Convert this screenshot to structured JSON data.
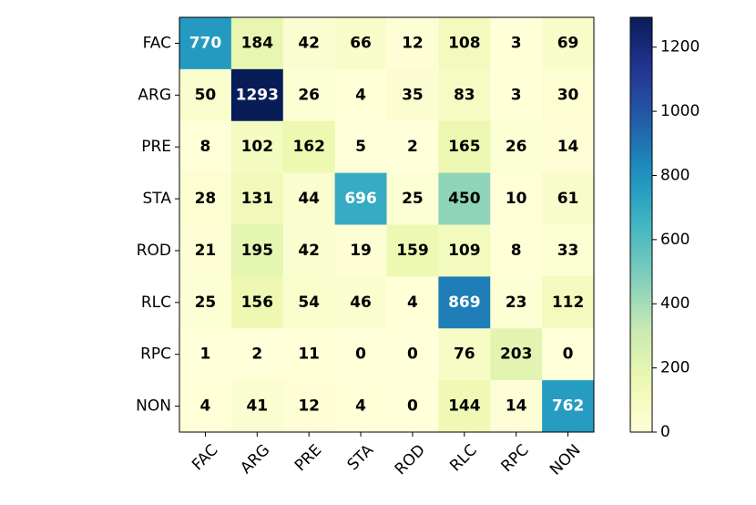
{
  "chart_data": {
    "type": "heatmap",
    "row_labels": [
      "FAC",
      "ARG",
      "PRE",
      "STA",
      "ROD",
      "RLC",
      "RPC",
      "NON"
    ],
    "col_labels": [
      "FAC",
      "ARG",
      "PRE",
      "STA",
      "ROD",
      "RLC",
      "RPC",
      "NON"
    ],
    "values": [
      [
        770,
        184,
        42,
        66,
        12,
        108,
        3,
        69
      ],
      [
        50,
        1293,
        26,
        4,
        35,
        83,
        3,
        30
      ],
      [
        8,
        102,
        162,
        5,
        2,
        165,
        26,
        14
      ],
      [
        28,
        131,
        44,
        696,
        25,
        450,
        10,
        61
      ],
      [
        21,
        195,
        42,
        19,
        159,
        109,
        8,
        33
      ],
      [
        25,
        156,
        54,
        46,
        4,
        869,
        23,
        112
      ],
      [
        1,
        2,
        11,
        0,
        0,
        76,
        203,
        0
      ],
      [
        4,
        41,
        12,
        4,
        0,
        144,
        14,
        762
      ]
    ],
    "colormap": "YlGnBu",
    "vmin": 0,
    "vmax": 1293,
    "colorbar_ticks": [
      0,
      200,
      400,
      600,
      800,
      1000,
      1200
    ]
  }
}
